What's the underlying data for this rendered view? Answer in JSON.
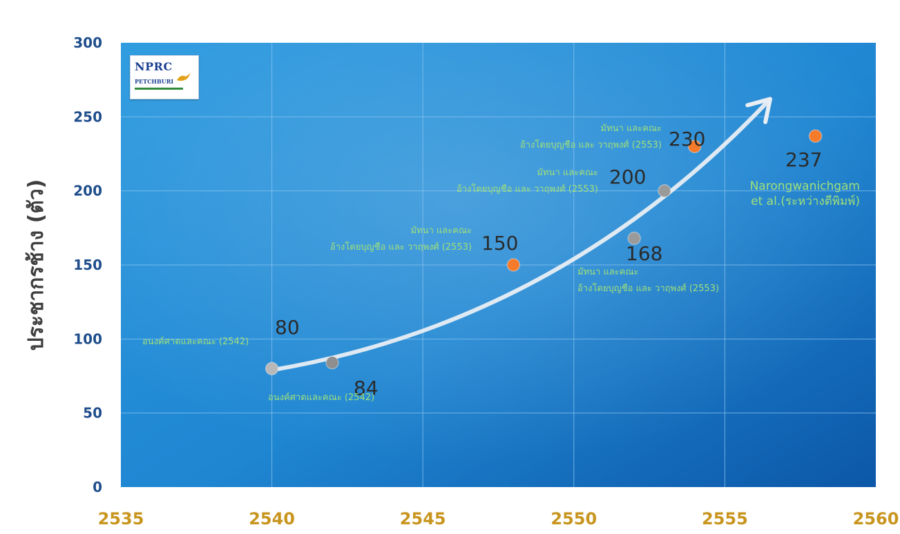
{
  "chart_data": {
    "type": "scatter",
    "ylabel": "ประชากรช้าง (ตัว)",
    "xlim": [
      2535,
      2560
    ],
    "ylim": [
      0,
      300
    ],
    "xticks": [
      2535,
      2540,
      2545,
      2550,
      2555,
      2560
    ],
    "yticks": [
      0,
      50,
      100,
      150,
      200,
      250,
      300
    ],
    "grid": true,
    "points": [
      {
        "x": 2540,
        "y": 80,
        "label": "80",
        "source": "อนงค์ศาตและคณะ (2542)",
        "color": "#b8b8b8"
      },
      {
        "x": 2542,
        "y": 84,
        "label": "84",
        "source": "อนงค์ศาตและคณะ (2542)",
        "color": "#8e8e8e"
      },
      {
        "x": 2548,
        "y": 150,
        "label": "150",
        "source": [
          "มัทนา และคณะ",
          "อ้างโดยบุญชือ และ วาฤพงศ์ (2553)"
        ],
        "color": "#f57a2a"
      },
      {
        "x": 2552,
        "y": 168,
        "label": "168",
        "source": [
          "มัทนา และคณะ",
          "อ้างโดยบุญชือ และ วาฤพงศ์ (2553)"
        ],
        "color": "#9a9a9a"
      },
      {
        "x": 2553,
        "y": 200,
        "label": "200",
        "source": [
          "มัทนา และคณะ",
          "อ้างโดยบุญชือ และ วาฤพงศ์ (2553)"
        ],
        "color": "#9a9a9a"
      },
      {
        "x": 2554,
        "y": 230,
        "label": "230",
        "source": [
          "มัทนา และคณะ",
          "อ้างโดยบุญชือ และ วาฤพงศ์ (2553)"
        ],
        "color": "#f57a2a"
      },
      {
        "x": 2558,
        "y": 237,
        "label": "237",
        "source": [
          "Narongwanichgam",
          "et al.(ระหว่างตีพิมพ์)"
        ],
        "color": "#f57a2a"
      }
    ],
    "trend_arrow": {
      "from": [
        2540,
        79
      ],
      "to": [
        2556.5,
        262
      ]
    }
  },
  "logo": {
    "title": "NPRC",
    "subtitle": "PETCHBURI"
  },
  "colors": {
    "plot_bg_light": "#2d9be0",
    "plot_bg_dark": "#0c57a8",
    "grid": "#8cc6f0",
    "ytick": "#1f4e8c",
    "xtick": "#c8951e",
    "ylabel": "#3f3f3f",
    "value_label": "#2a2a2a",
    "source_label": "#9fe07a"
  }
}
